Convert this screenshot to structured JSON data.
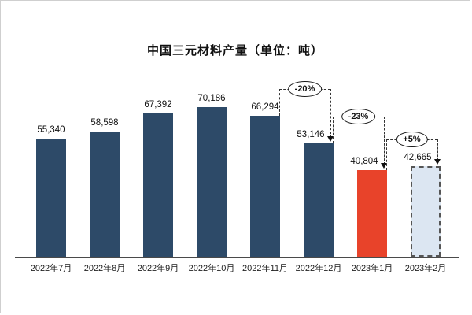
{
  "chart_data": {
    "type": "bar",
    "title": "中国三元材料产量（单位：吨）",
    "categories": [
      "2022年7月",
      "2022年8月",
      "2022年9月",
      "2022年10月",
      "2022年11月",
      "2022年12月",
      "2023年1月",
      "2023年2月"
    ],
    "values": [
      55340,
      58598,
      67392,
      70186,
      66294,
      53146,
      40804,
      42665
    ],
    "value_labels": [
      "55,340",
      "58,598",
      "67,392",
      "70,186",
      "66,294",
      "53,146",
      "40,804",
      "42,665"
    ],
    "bar_roles": [
      "primary",
      "primary",
      "primary",
      "primary",
      "primary",
      "primary",
      "highlight",
      "forecast"
    ],
    "annotations": [
      {
        "label": "-20%",
        "from": 4,
        "to": 5
      },
      {
        "label": "-23%",
        "from": 5,
        "to": 6
      },
      {
        "label": "+5%",
        "from": 6,
        "to": 7
      }
    ],
    "colors": {
      "primary": "#2d4a68",
      "highlight": "#e8432a",
      "forecast_fill": "#dce6f2",
      "forecast_border": "#555555"
    },
    "xlabel": "",
    "ylabel": "",
    "ylim": [
      0,
      75000
    ],
    "grid": false,
    "legend": false
  }
}
